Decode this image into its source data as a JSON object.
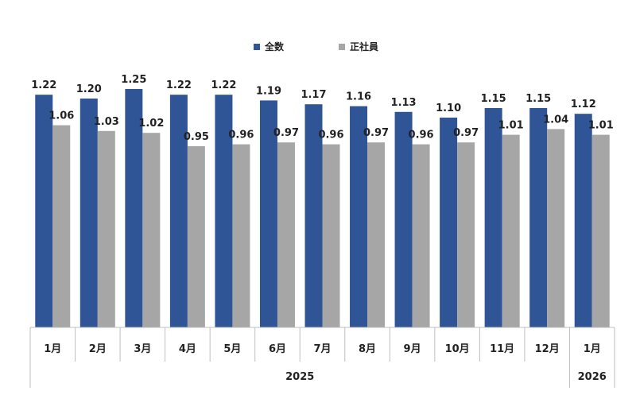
{
  "chart_data": {
    "type": "bar",
    "title": "",
    "xlabel": "",
    "ylabel": "",
    "ylim": [
      0,
      1.35
    ],
    "grid": false,
    "legend_position": "top-center",
    "categories": [
      "1月",
      "2月",
      "3月",
      "4月",
      "5月",
      "6月",
      "7月",
      "8月",
      "9月",
      "10月",
      "11月",
      "12月",
      "1月"
    ],
    "year_groups": [
      {
        "label": "2025",
        "count": 12
      },
      {
        "label": "2026",
        "count": 1
      }
    ],
    "series": [
      {
        "name": "全数",
        "color": "#2F5597",
        "values": [
          1.22,
          1.2,
          1.25,
          1.22,
          1.22,
          1.19,
          1.17,
          1.16,
          1.13,
          1.1,
          1.15,
          1.15,
          1.12
        ],
        "labels": [
          "1.22",
          "1.20",
          "1.25",
          "1.22",
          "1.22",
          "1.19",
          "1.17",
          "1.16",
          "1.13",
          "1.10",
          "1.15",
          "1.15",
          "1.12"
        ]
      },
      {
        "name": "正社員",
        "color": "#A6A6A6",
        "values": [
          1.06,
          1.03,
          1.02,
          0.95,
          0.96,
          0.97,
          0.96,
          0.97,
          0.96,
          0.97,
          1.01,
          1.04,
          1.01
        ],
        "labels": [
          "1.06",
          "1.03",
          "1.02",
          "0.95",
          "0.96",
          "0.97",
          "0.96",
          "0.97",
          "0.96",
          "0.97",
          "1.01",
          "1.04",
          "1.01"
        ]
      }
    ]
  }
}
